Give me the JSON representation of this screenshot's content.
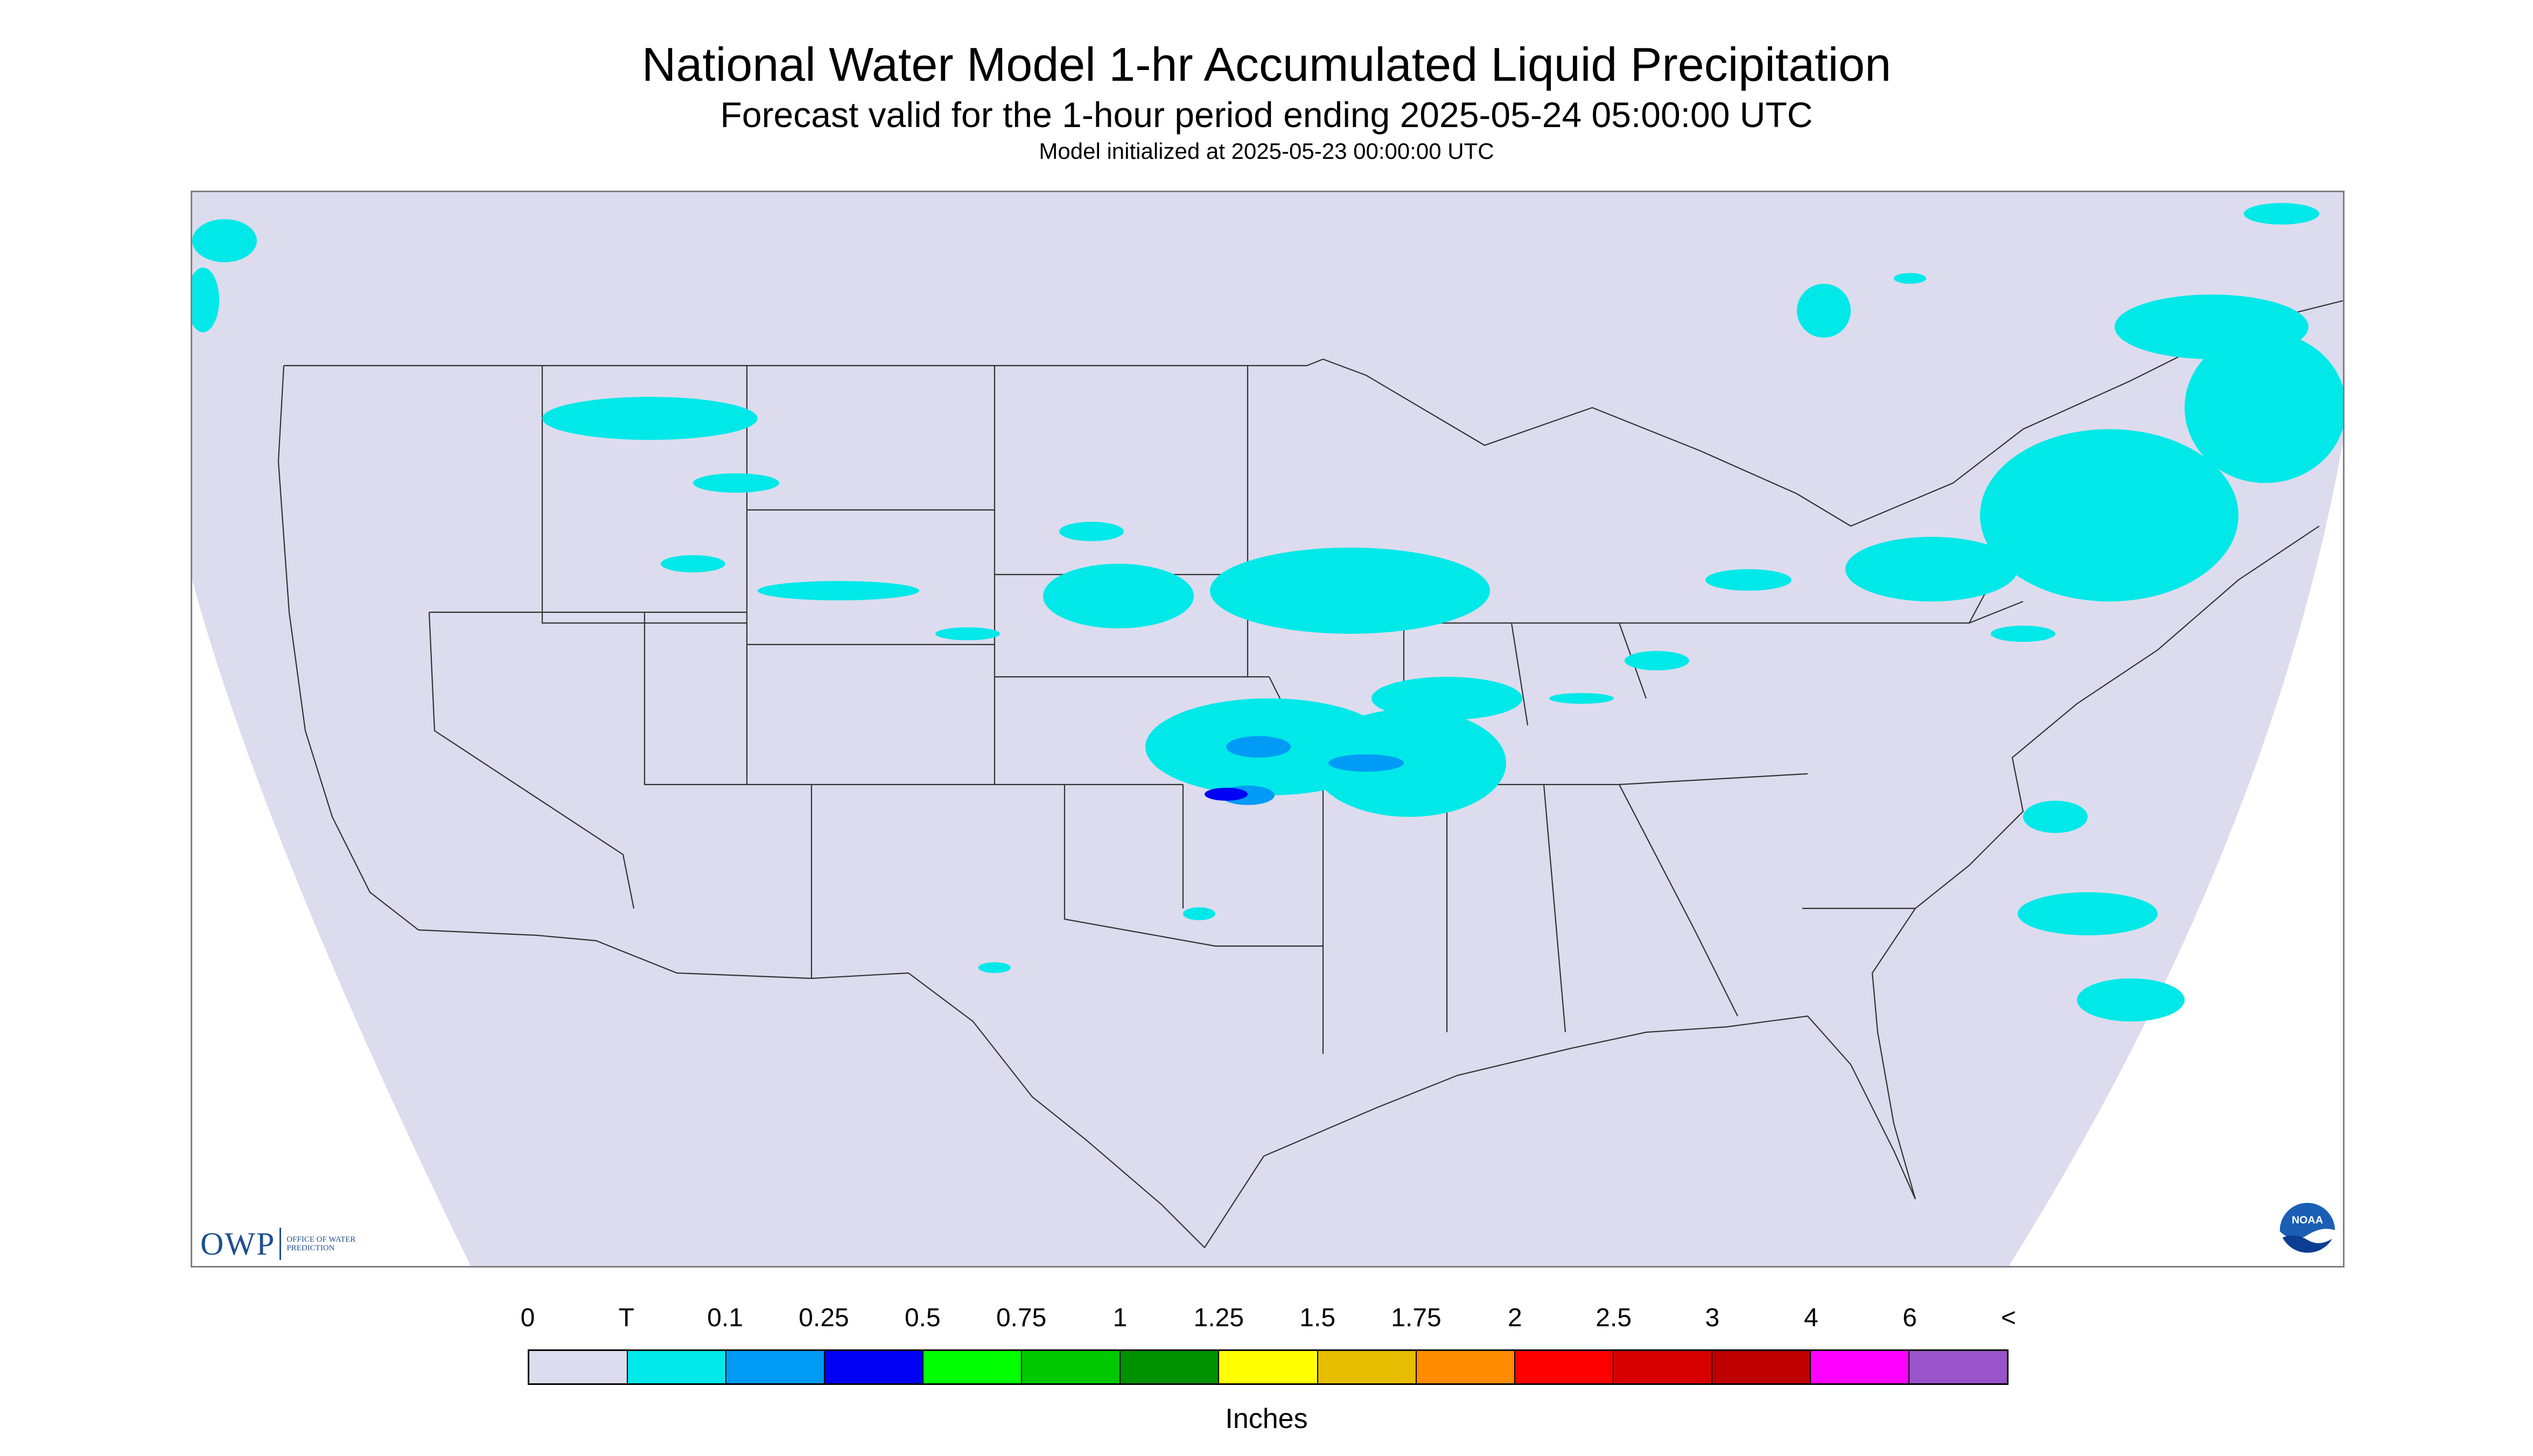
{
  "title": "National Water Model 1-hr Accumulated Liquid Precipitation",
  "subtitle": "Forecast valid for the 1-hour period ending 2025-05-24 05:00:00 UTC",
  "init_text": "Model initialized at 2025-05-23 00:00:00 UTC",
  "map": {
    "background_color": "#dcdcee",
    "land_color": "#dcdcee",
    "outside_color": "#ffffff",
    "boundary_color": "#333333",
    "projection_note_hidden": true
  },
  "owp_logo": {
    "letters": "OWP",
    "name": "Office of Water Prediction"
  },
  "noaa_logo": {
    "text": "NOAA"
  },
  "legend": {
    "labels": [
      "0",
      "T",
      "0.1",
      "0.25",
      "0.5",
      "0.75",
      "1",
      "1.25",
      "1.5",
      "1.75",
      "2",
      "2.5",
      "3",
      "4",
      "6",
      "<"
    ],
    "colors": [
      "#dcdcee",
      "#00e8e8",
      "#009bf5",
      "#0000f5",
      "#00ff00",
      "#00c800",
      "#009100",
      "#ffff00",
      "#e6bd00",
      "#ff8c00",
      "#ff0000",
      "#d70000",
      "#bf0000",
      "#ff00ff",
      "#9954c9"
    ],
    "units": "Inches"
  },
  "precip_colors": {
    "trace": "#00e8e8",
    "light": "#009bf5",
    "moderate": "#0000f5"
  }
}
